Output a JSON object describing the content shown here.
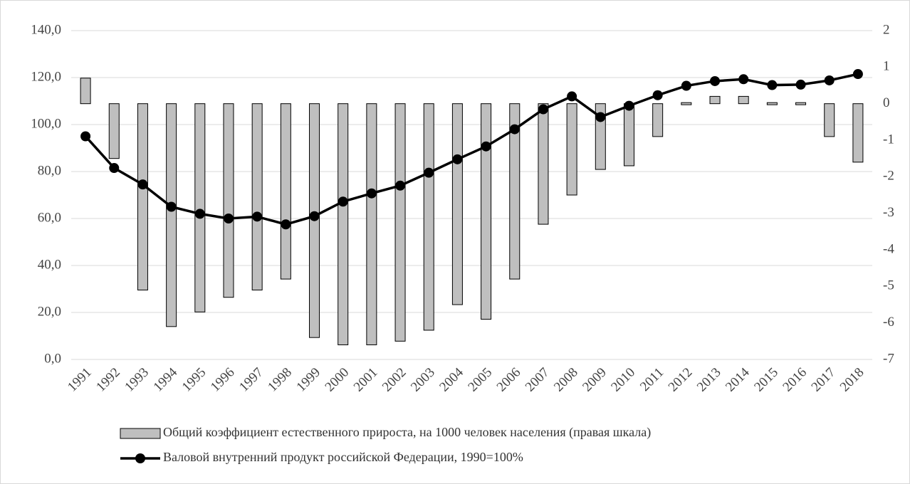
{
  "chart_data": {
    "type": "bar-line",
    "categories": [
      "1991",
      "1992",
      "1993",
      "1994",
      "1995",
      "1996",
      "1997",
      "1998",
      "1999",
      "2000",
      "2001",
      "2002",
      "2003",
      "2004",
      "2005",
      "2006",
      "2007",
      "2008",
      "2009",
      "2010",
      "2011",
      "2012",
      "2013",
      "2014",
      "2015",
      "2016",
      "2017",
      "2018"
    ],
    "series": [
      {
        "name": "Общий коэффициент естественного прироста, на 1000 человек населения (правая шкала)",
        "type": "bar",
        "axis": "y2",
        "color": "#bfbfbf",
        "values": [
          0.7,
          -1.5,
          -5.1,
          -6.1,
          -5.7,
          -5.3,
          -5.1,
          -4.8,
          -6.4,
          -6.6,
          -6.6,
          -6.5,
          -6.2,
          -5.5,
          -5.9,
          -4.8,
          -3.3,
          -2.5,
          -1.8,
          -1.7,
          -0.9,
          0,
          0.2,
          0.2,
          0,
          0,
          -0.9,
          -1.6
        ]
      },
      {
        "name": "Валовой внутренний продукт российской Федерации, 1990=100%",
        "type": "line",
        "color": "#000000",
        "values": [
          95.0,
          81.5,
          74.5,
          65,
          62,
          60,
          60.8,
          57.5,
          61,
          67.2,
          70.7,
          74,
          79.5,
          85.2,
          90.7,
          98,
          106.5,
          112,
          103.2,
          108,
          112.5,
          116.5,
          118.5,
          119.3,
          116.8,
          117,
          118.8,
          121.5
        ]
      }
    ],
    "ylim": [
      0,
      140
    ],
    "yticks": [
      {
        "value": 0,
        "label": "0,0"
      },
      {
        "value": 20,
        "label": "20,0"
      },
      {
        "value": 40,
        "label": "40,0"
      },
      {
        "value": 60,
        "label": "60,0"
      },
      {
        "value": 80,
        "label": "80,0"
      },
      {
        "value": 100,
        "label": "100,0"
      },
      {
        "value": 120,
        "label": "120,0"
      },
      {
        "value": 140,
        "label": "140,0"
      }
    ],
    "y2lim": [
      -7,
      2
    ],
    "y2ticks": [
      2,
      1,
      0,
      -1,
      -2,
      -3,
      -4,
      -5,
      -6,
      -7
    ],
    "grid": true
  }
}
